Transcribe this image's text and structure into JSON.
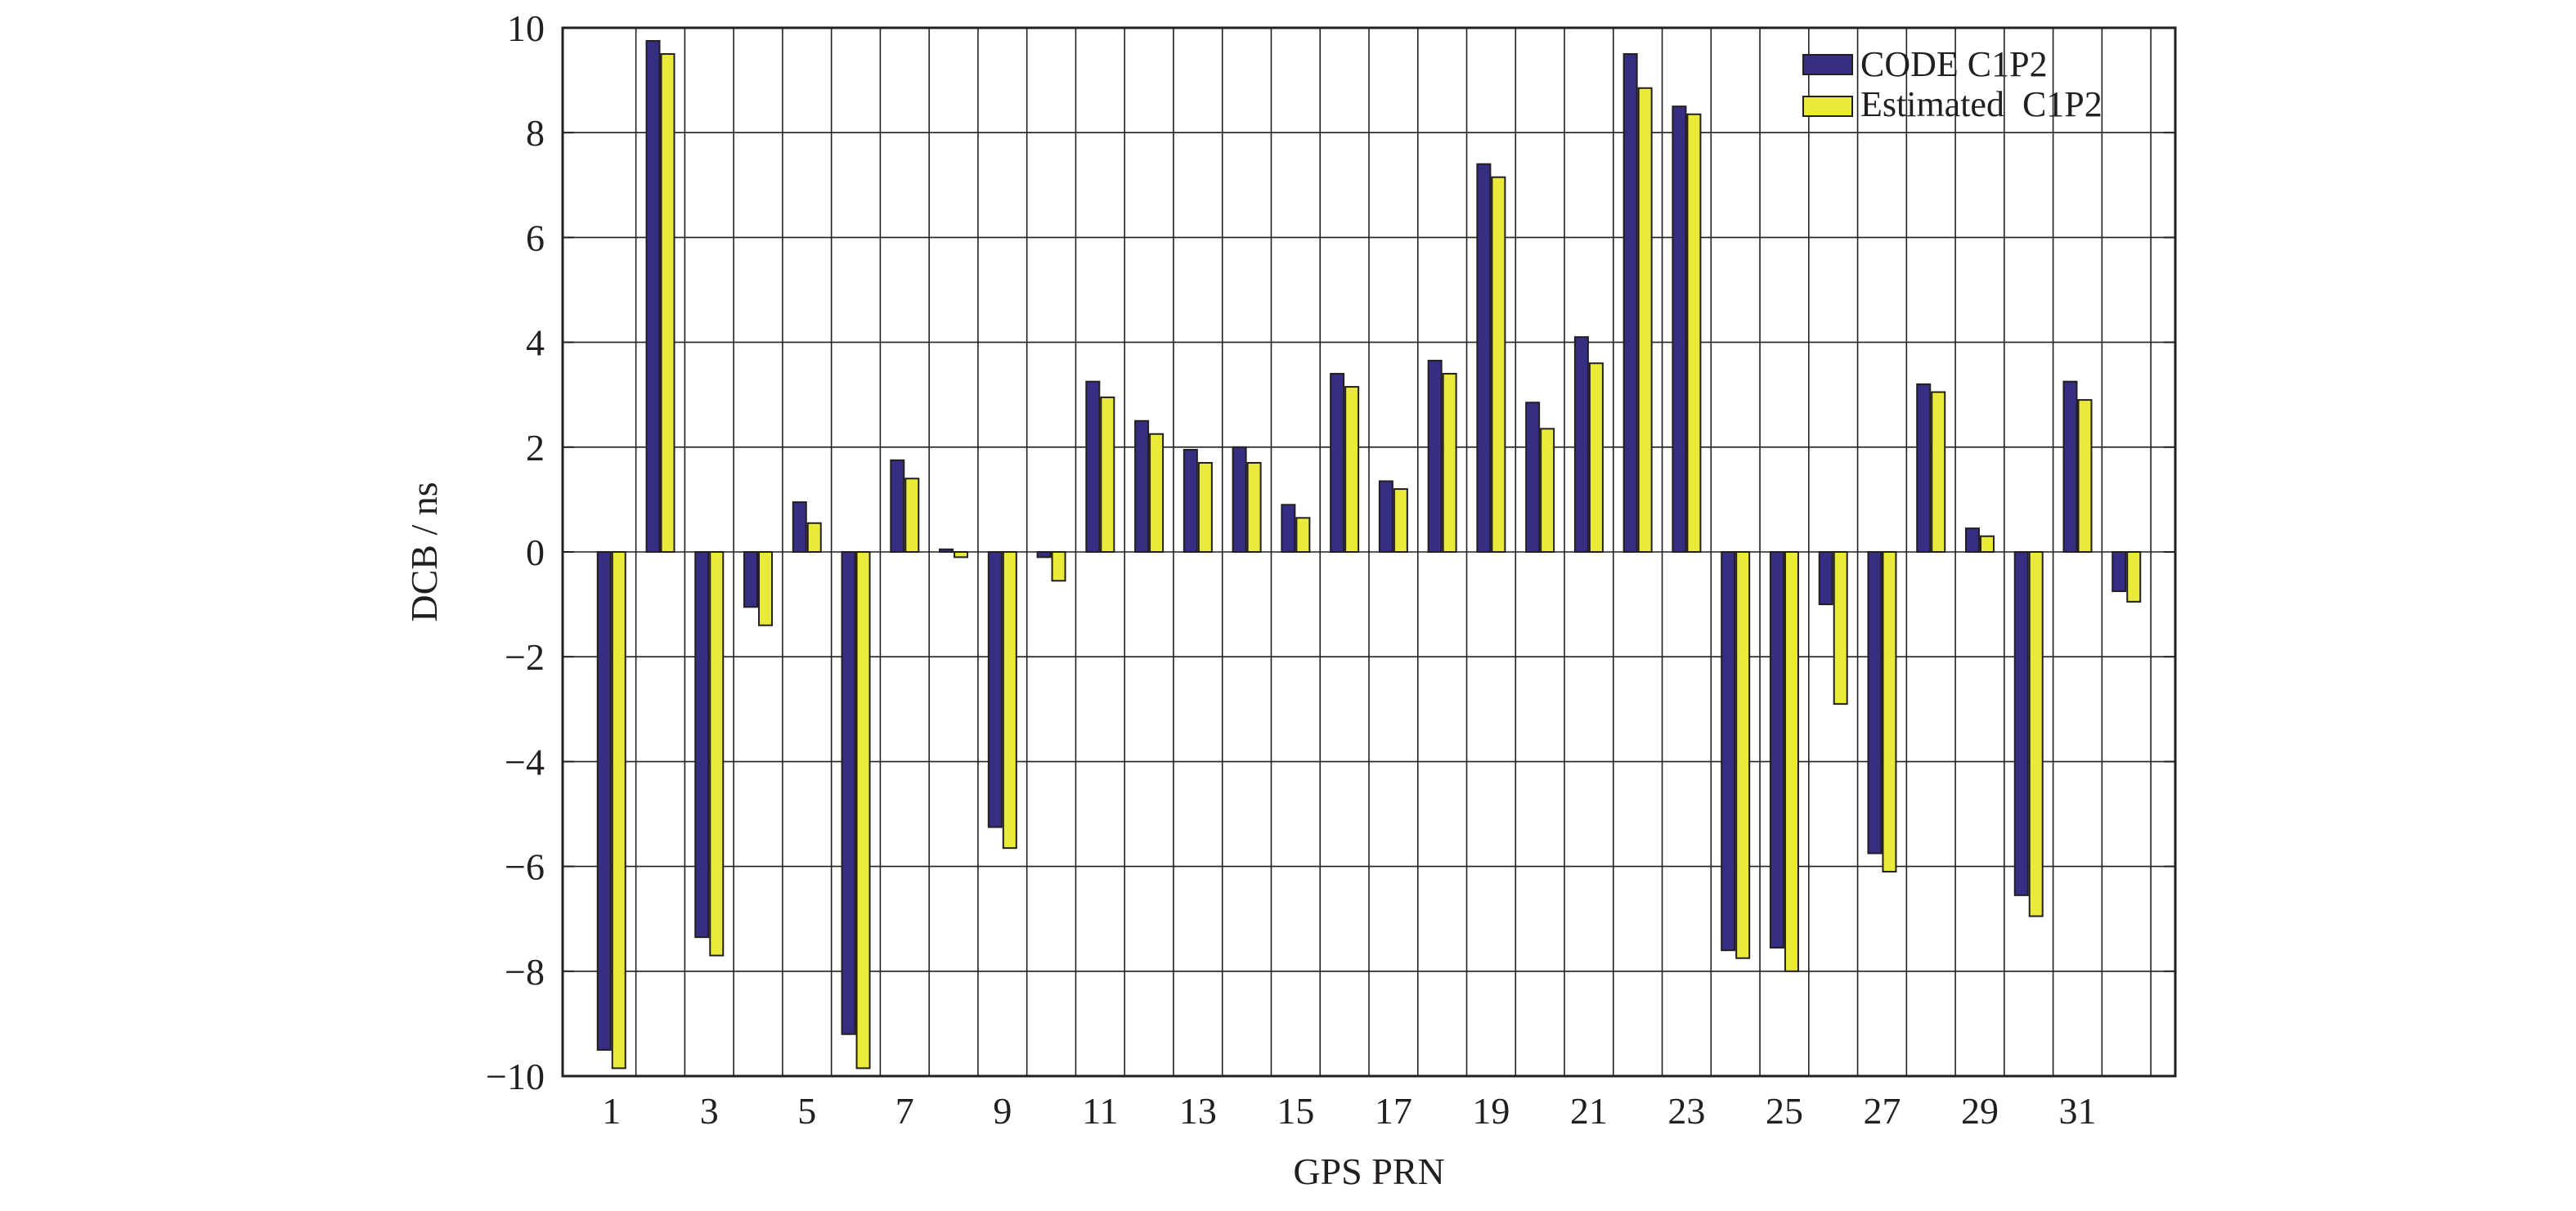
{
  "chart_data": {
    "type": "bar",
    "title": "",
    "xlabel": "GPS PRN",
    "ylabel": "DCB / ns",
    "ylim": [
      -10,
      10
    ],
    "yticks": [
      10,
      8,
      6,
      4,
      2,
      0,
      -2,
      -4,
      -6,
      -8,
      -10
    ],
    "ytick_labels": [
      "10",
      "8",
      "6",
      "4",
      "2",
      "0",
      "−2",
      "−4",
      "−6",
      "−8",
      "−10"
    ],
    "categories": [
      1,
      2,
      3,
      4,
      5,
      6,
      7,
      8,
      9,
      10,
      11,
      12,
      13,
      14,
      15,
      16,
      17,
      18,
      19,
      20,
      21,
      22,
      23,
      24,
      25,
      26,
      27,
      28,
      29,
      30,
      31,
      32
    ],
    "xtick_labels": [
      "1",
      "3",
      "5",
      "7",
      "9",
      "11",
      "13",
      "15",
      "17",
      "19",
      "21",
      "23",
      "25",
      "27",
      "29",
      "31"
    ],
    "grid": true,
    "legend_position": "top-right",
    "series": [
      {
        "name": "CODE C1P2",
        "color": "#352e83",
        "values": [
          -9.5,
          9.75,
          -7.35,
          -1.05,
          0.95,
          -9.2,
          1.75,
          0.05,
          -5.25,
          -0.1,
          3.25,
          2.5,
          1.95,
          2.0,
          0.9,
          3.4,
          1.35,
          3.65,
          7.4,
          2.85,
          4.1,
          9.5,
          8.5,
          -7.6,
          -7.55,
          -1.0,
          -5.75,
          3.2,
          0.45,
          -6.55,
          3.25,
          -0.75
        ]
      },
      {
        "name": "Estimated  C1P2",
        "color": "#e9ea3a",
        "values": [
          -9.85,
          9.5,
          -7.7,
          -1.4,
          0.55,
          -9.85,
          1.4,
          -0.1,
          -5.65,
          -0.55,
          2.95,
          2.25,
          1.7,
          1.7,
          0.65,
          3.15,
          1.2,
          3.4,
          7.15,
          2.35,
          3.6,
          8.85,
          8.35,
          -7.75,
          -8.0,
          -2.9,
          -6.1,
          3.05,
          0.3,
          -6.95,
          2.9,
          -0.95
        ]
      }
    ]
  }
}
